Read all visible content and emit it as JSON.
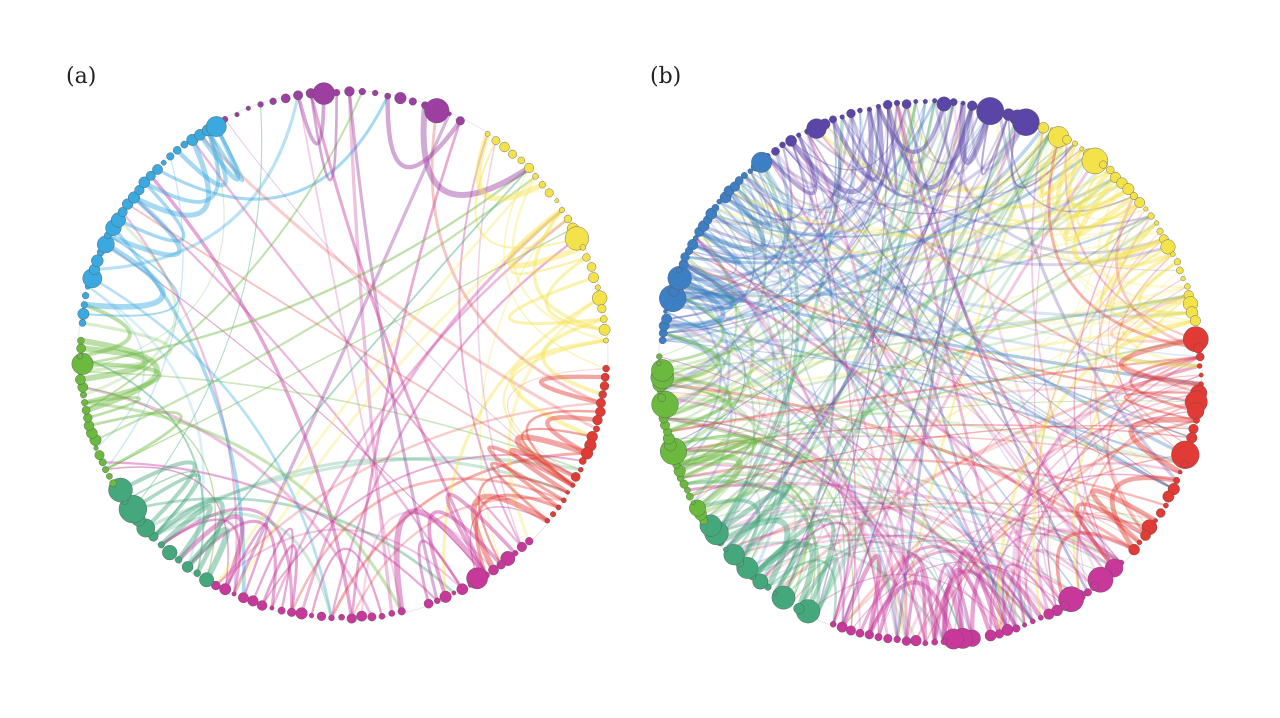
{
  "panels": [
    {
      "label": "(a)"
    },
    {
      "label": "(b)"
    }
  ],
  "colors": {
    "purple_a": "#9c3fa1",
    "yellow": "#f4e24a",
    "red": "#e23a34",
    "magenta": "#c8389b",
    "green_teal": "#45a77c",
    "green": "#6bb93f",
    "blue": "#39a9e0",
    "violet_b": "#5b45a8",
    "blue_b": "#3c7fc4",
    "orange": "#f59a3b"
  }
}
